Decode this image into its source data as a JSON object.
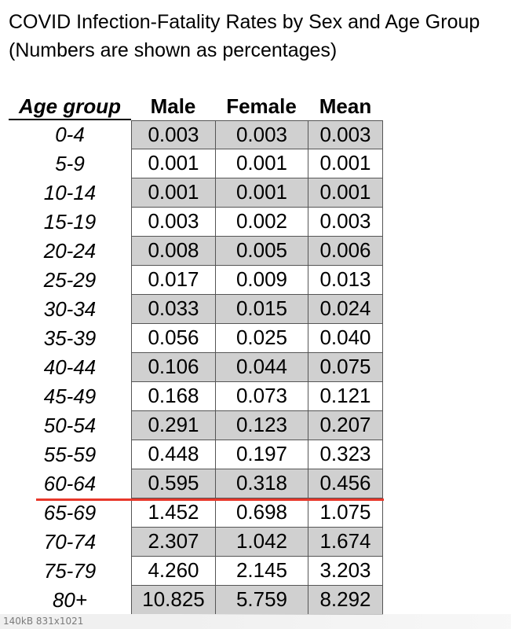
{
  "title": {
    "line1": "COVID Infection-Fatality Rates by Sex and Age Group",
    "line2": "(Numbers are shown as percentages)"
  },
  "table": {
    "headers": {
      "age": "Age group",
      "male": "Male",
      "female": "Female",
      "mean": "Mean"
    },
    "rows": [
      {
        "age": "0-4",
        "male": "0.003",
        "female": "0.003",
        "mean": "0.003"
      },
      {
        "age": "5-9",
        "male": "0.001",
        "female": "0.001",
        "mean": "0.001"
      },
      {
        "age": "10-14",
        "male": "0.001",
        "female": "0.001",
        "mean": "0.001"
      },
      {
        "age": "15-19",
        "male": "0.003",
        "female": "0.002",
        "mean": "0.003"
      },
      {
        "age": "20-24",
        "male": "0.008",
        "female": "0.005",
        "mean": "0.006"
      },
      {
        "age": "25-29",
        "male": "0.017",
        "female": "0.009",
        "mean": "0.013"
      },
      {
        "age": "30-34",
        "male": "0.033",
        "female": "0.015",
        "mean": "0.024"
      },
      {
        "age": "35-39",
        "male": "0.056",
        "female": "0.025",
        "mean": "0.040"
      },
      {
        "age": "40-44",
        "male": "0.106",
        "female": "0.044",
        "mean": "0.075"
      },
      {
        "age": "45-49",
        "male": "0.168",
        "female": "0.073",
        "mean": "0.121"
      },
      {
        "age": "50-54",
        "male": "0.291",
        "female": "0.123",
        "mean": "0.207"
      },
      {
        "age": "55-59",
        "male": "0.448",
        "female": "0.197",
        "mean": "0.323"
      },
      {
        "age": "60-64",
        "male": "0.595",
        "female": "0.318",
        "mean": "0.456"
      },
      {
        "age": "65-69",
        "male": "1.452",
        "female": "0.698",
        "mean": "1.075"
      },
      {
        "age": "70-74",
        "male": "2.307",
        "female": "1.042",
        "mean": "1.674"
      },
      {
        "age": "75-79",
        "male": "4.260",
        "female": "2.145",
        "mean": "3.203"
      },
      {
        "age": "80+",
        "male": "10.825",
        "female": "5.759",
        "mean": "8.292"
      }
    ]
  },
  "colors": {
    "shaded_row": "#d0d0d0",
    "divider_line": "#e8372a"
  },
  "footer": {
    "info": "140kB 831x1021"
  }
}
